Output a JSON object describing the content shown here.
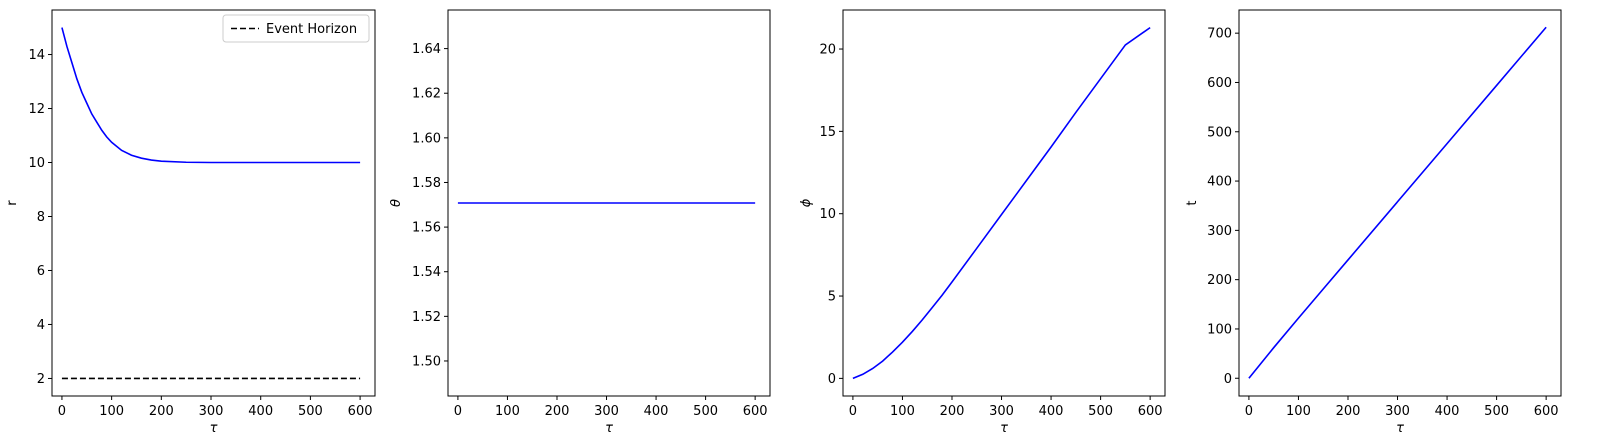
{
  "chart_data": [
    {
      "type": "line",
      "title": "",
      "xlabel": "τ",
      "ylabel": "r",
      "xlim": [
        -20,
        630
      ],
      "ylim": [
        1.35,
        15.65
      ],
      "xticks": [
        0,
        100,
        200,
        300,
        400,
        500,
        600
      ],
      "yticks": [
        2,
        4,
        6,
        8,
        10,
        12,
        14
      ],
      "tick_decimals": 0,
      "grid": false,
      "legend": {
        "placement": "top-right",
        "entries": [
          "Event Horizon"
        ]
      },
      "series": [
        {
          "style": "solid",
          "color": "#0000ff",
          "x": [
            0,
            10,
            20,
            30,
            40,
            50,
            60,
            70,
            80,
            90,
            100,
            120,
            140,
            160,
            180,
            200,
            250,
            300,
            350,
            400,
            450,
            500,
            550,
            600
          ],
          "y": [
            15.0,
            14.3,
            13.7,
            13.1,
            12.6,
            12.2,
            11.8,
            11.5,
            11.2,
            10.95,
            10.75,
            10.45,
            10.27,
            10.16,
            10.09,
            10.05,
            10.01,
            10.0,
            10.0,
            10.0,
            10.0,
            10.0,
            10.0,
            10.0
          ]
        },
        {
          "name": "Event Horizon",
          "style": "dashed",
          "color": "#000000",
          "x": [
            0,
            600
          ],
          "y": [
            2,
            2
          ]
        }
      ]
    },
    {
      "type": "line",
      "title": "",
      "xlabel": "τ",
      "ylabel": "θ",
      "xlim": [
        -20,
        630
      ],
      "ylim": [
        1.4843,
        1.6573
      ],
      "xticks": [
        0,
        100,
        200,
        300,
        400,
        500,
        600
      ],
      "yticks": [
        1.5,
        1.52,
        1.54,
        1.56,
        1.58,
        1.6,
        1.62,
        1.64
      ],
      "tick_decimals": 2,
      "grid": false,
      "series": [
        {
          "style": "solid",
          "color": "#0000ff",
          "x": [
            0,
            600
          ],
          "y": [
            1.5708,
            1.5708
          ]
        }
      ]
    },
    {
      "type": "line",
      "title": "",
      "xlabel": "τ",
      "ylabel": "ϕ",
      "xlim": [
        -20,
        630
      ],
      "ylim": [
        -1.07,
        22.37
      ],
      "xticks": [
        0,
        100,
        200,
        300,
        400,
        500,
        600
      ],
      "yticks": [
        0,
        5,
        10,
        15,
        20
      ],
      "tick_decimals": 0,
      "grid": false,
      "series": [
        {
          "style": "solid",
          "color": "#0000ff",
          "x": [
            0,
            20,
            40,
            60,
            80,
            100,
            120,
            140,
            160,
            180,
            200,
            250,
            300,
            350,
            400,
            450,
            500,
            550,
            600
          ],
          "y": [
            0,
            0.25,
            0.6,
            1.05,
            1.6,
            2.2,
            2.85,
            3.55,
            4.3,
            5.05,
            5.85,
            7.9,
            9.95,
            12.0,
            14.05,
            16.15,
            18.2,
            20.25,
            21.3
          ]
        }
      ]
    },
    {
      "type": "line",
      "title": "",
      "xlabel": "τ",
      "ylabel": "t",
      "xlim": [
        -20,
        630
      ],
      "ylim": [
        -36,
        747
      ],
      "xticks": [
        0,
        100,
        200,
        300,
        400,
        500,
        600
      ],
      "yticks": [
        0,
        100,
        200,
        300,
        400,
        500,
        600,
        700
      ],
      "tick_decimals": 0,
      "grid": false,
      "series": [
        {
          "style": "solid",
          "color": "#0000ff",
          "x": [
            0,
            50,
            100,
            150,
            200,
            300,
            400,
            500,
            600
          ],
          "y": [
            0,
            62,
            122,
            181,
            240,
            358,
            476,
            594,
            712
          ]
        }
      ]
    }
  ]
}
